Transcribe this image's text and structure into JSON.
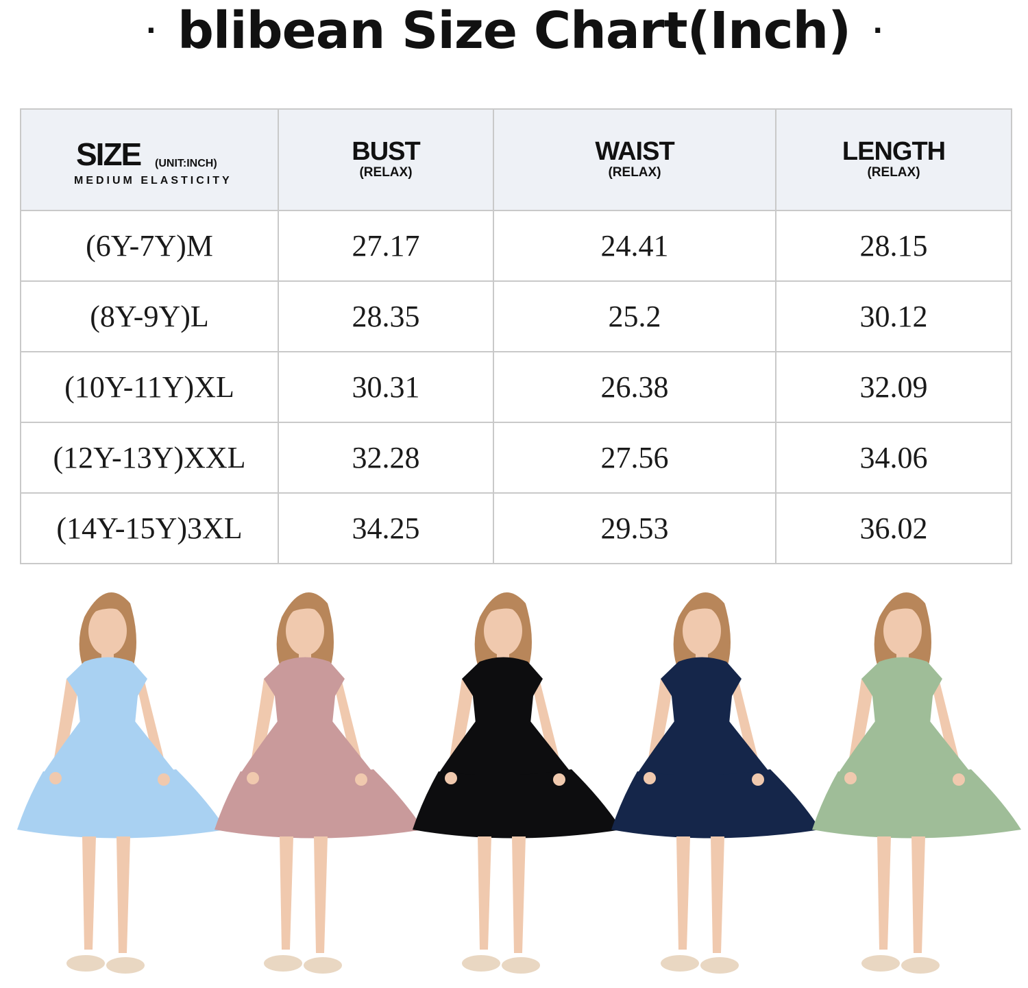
{
  "title": {
    "text": "blibean Size Chart(Inch)",
    "dot_left": "·",
    "dot_right": "·"
  },
  "table": {
    "headers": {
      "size": "SIZE",
      "size_unit": "(UNIT:INCH)",
      "size_note": "MEDIUM ELASTICITY",
      "bust": "BUST",
      "bust_sub": "(RELAX)",
      "waist": "WAIST",
      "waist_sub": "(RELAX)",
      "length": "LENGTH",
      "length_sub": "(RELAX)"
    },
    "rows": [
      {
        "size": "(6Y-7Y)M",
        "bust": "27.17",
        "waist": "24.41",
        "length": "28.15"
      },
      {
        "size": "(8Y-9Y)L",
        "bust": "28.35",
        "waist": "25.2",
        "length": "30.12"
      },
      {
        "size": "(10Y-11Y)XL",
        "bust": "30.31",
        "waist": "26.38",
        "length": "32.09"
      },
      {
        "size": "(12Y-13Y)XXL",
        "bust": "32.28",
        "waist": "27.56",
        "length": "34.06"
      },
      {
        "size": "(14Y-15Y)3XL",
        "bust": "34.25",
        "waist": "29.53",
        "length": "36.02"
      }
    ]
  },
  "models": [
    {
      "dress_color": "#a9d1f2"
    },
    {
      "dress_color": "#c99a9b"
    },
    {
      "dress_color": "#0d0d0f"
    },
    {
      "dress_color": "#15264a"
    },
    {
      "dress_color": "#9fbd98"
    }
  ],
  "colors": {
    "header_bg": "#eef1f6",
    "border": "#c9c9c9",
    "skin": "#f0c9ae",
    "hair": "#b8865a",
    "sandal": "#e9d7c2"
  }
}
